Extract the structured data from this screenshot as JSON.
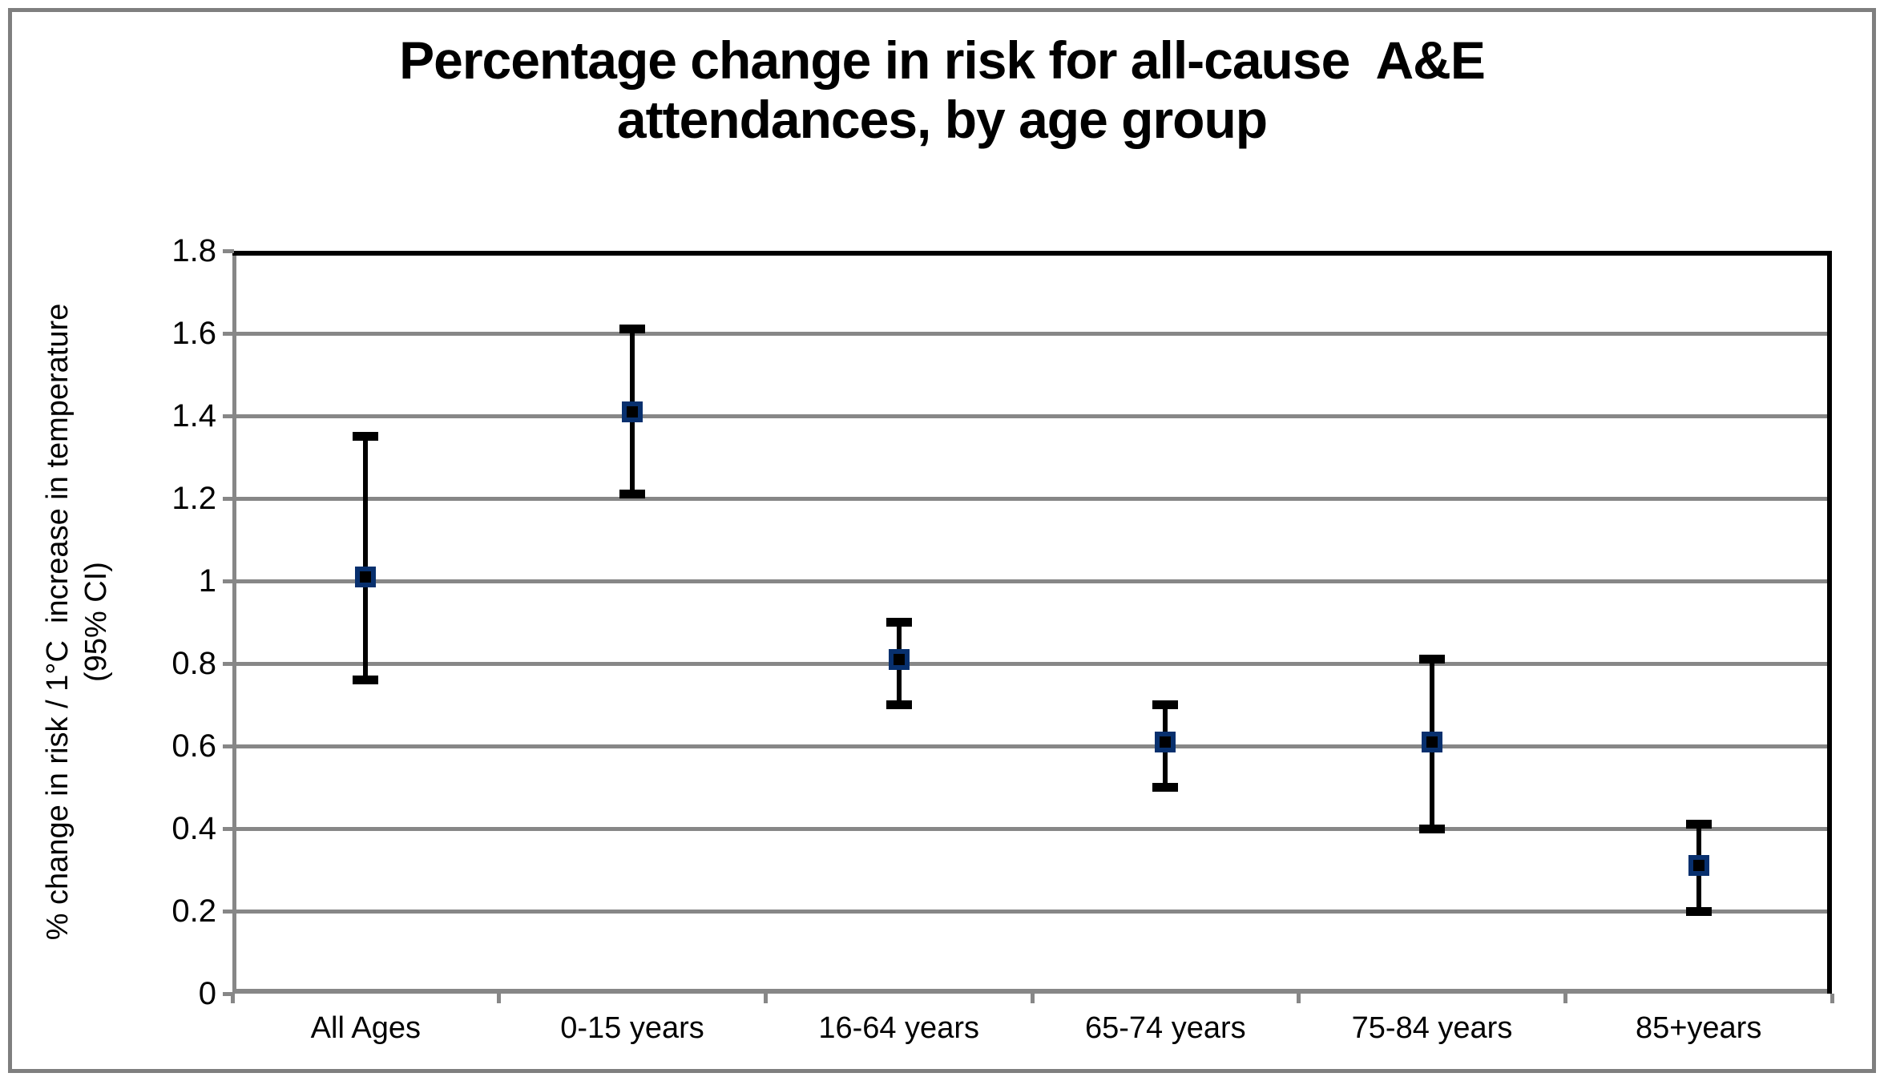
{
  "figure": {
    "title_line1": "Percentage change in risk for all-cause  A&E",
    "title_line2": "attendances, by age group"
  },
  "chart_data": {
    "type": "scatter",
    "subtype": "point-estimates-with-error-bars",
    "title": "Percentage change in risk for all-cause  A&E attendances, by age group",
    "categories": [
      "All Ages",
      "0-15 years",
      "16-64 years",
      "65-74 years",
      "75-84 years",
      "85+years"
    ],
    "series": [
      {
        "name": "% change in risk / 1°C increase in temperature (95% CI)",
        "values": [
          1.01,
          1.41,
          0.81,
          0.61,
          0.61,
          0.31
        ],
        "ci_low": [
          0.76,
          1.21,
          0.7,
          0.5,
          0.4,
          0.2
        ],
        "ci_high": [
          1.35,
          1.61,
          0.9,
          0.7,
          0.81,
          0.41
        ]
      }
    ],
    "xlabel": "",
    "ylabel_line1": "% change in risk / 1°C  increase in temperature",
    "ylabel_line2": "(95% CI)",
    "ylim": [
      0,
      1.8
    ],
    "yticks": [
      {
        "label": "1.8",
        "value": 1.8
      },
      {
        "label": "1.6",
        "value": 1.6
      },
      {
        "label": "1.4",
        "value": 1.4
      },
      {
        "label": "1.2",
        "value": 1.2
      },
      {
        "label": "1",
        "value": 1.0
      },
      {
        "label": "0.8",
        "value": 0.8
      },
      {
        "label": "0.6",
        "value": 0.6
      },
      {
        "label": "0.4",
        "value": 0.4
      },
      {
        "label": "0.2",
        "value": 0.2
      },
      {
        "label": "0",
        "value": 0.0
      }
    ],
    "grid": true,
    "legend": false,
    "colors": {
      "marker_fill": "#000000",
      "marker_border": "#08306e",
      "error_bar": "#000000",
      "gridline": "#878787",
      "axis_line": "#878787",
      "plot_border": "#000000",
      "figure_border": "#7f7f7f",
      "background": "#ffffff",
      "text": "#000000"
    }
  }
}
